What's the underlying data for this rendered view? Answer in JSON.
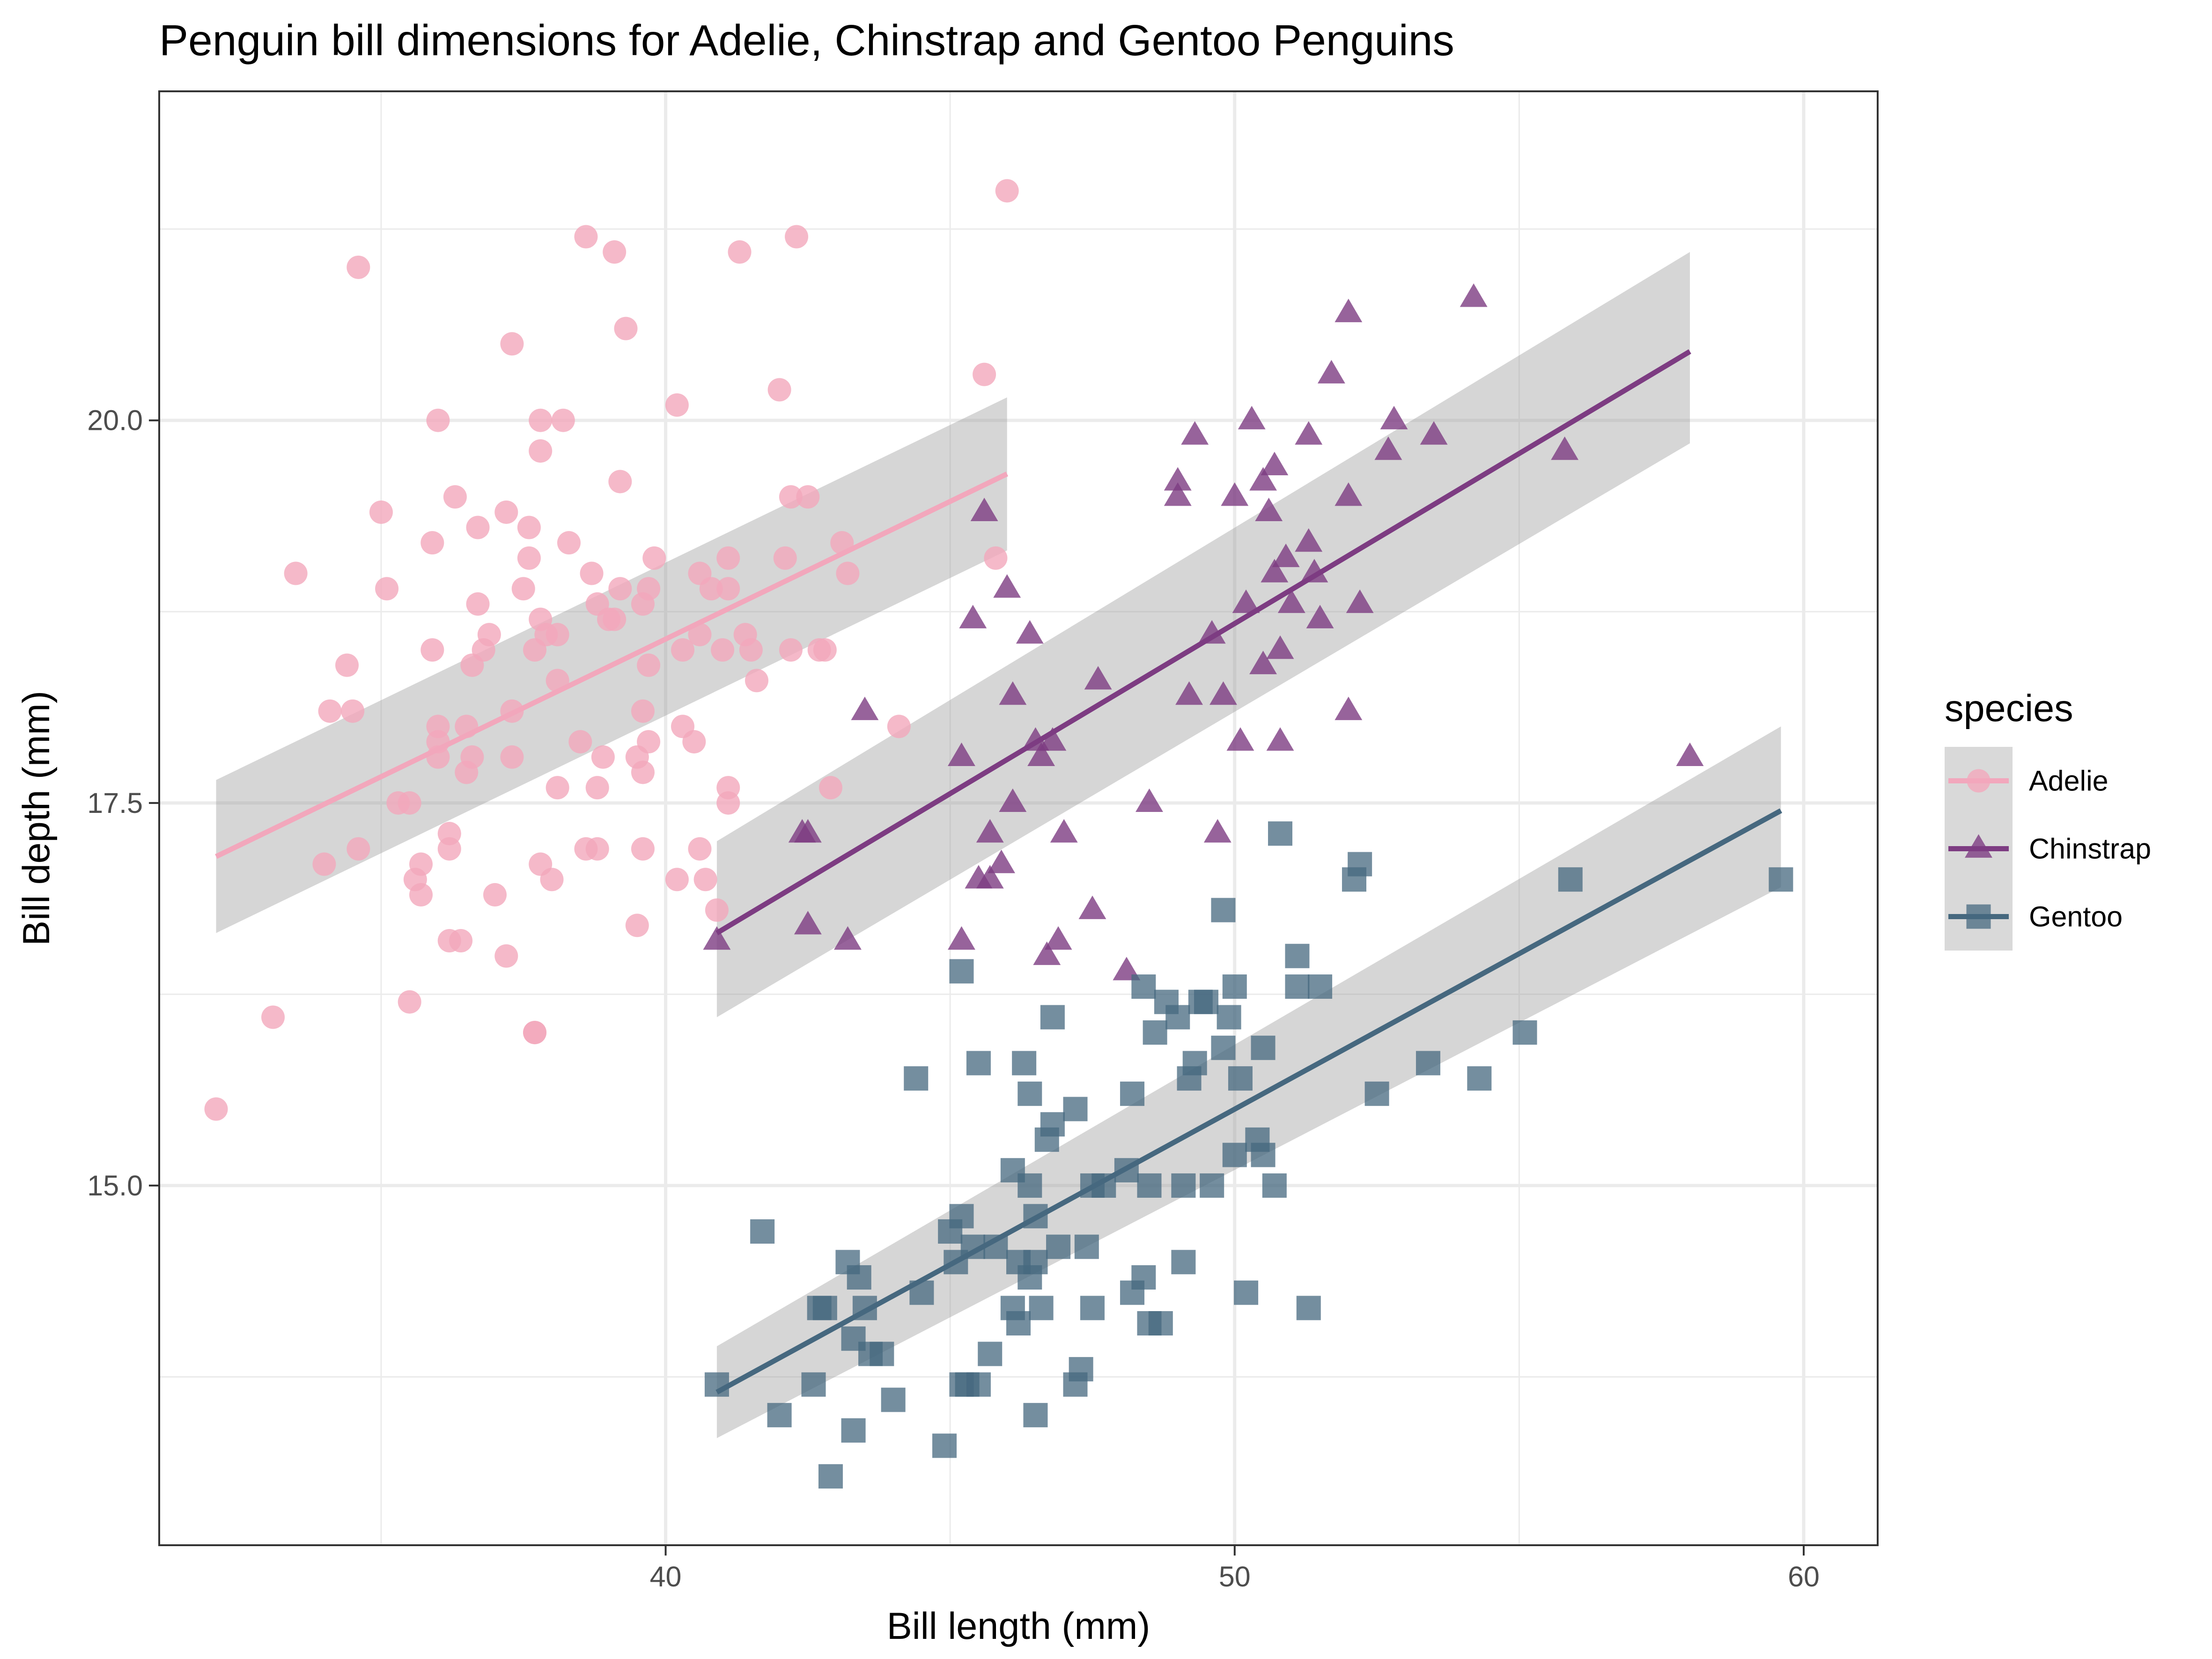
{
  "chart_data": {
    "type": "scatter",
    "title": "Penguin bill dimensions for Adelie, Chinstrap and Gentoo Penguins",
    "xlabel": "Bill length (mm)",
    "ylabel": "Bill depth (mm)",
    "xlim": [
      31.1,
      61.3
    ],
    "ylim": [
      12.65,
      22.15
    ],
    "x_ticks": [
      40,
      50,
      60
    ],
    "x_tick_labels": [
      "40",
      "50",
      "60"
    ],
    "y_ticks": [
      15.0,
      17.5,
      20.0
    ],
    "y_tick_labels": [
      "15.0",
      "17.5",
      "20.0"
    ],
    "grid": true,
    "legend": {
      "title": "species",
      "position": "right"
    },
    "series": [
      {
        "name": "Adelie",
        "shape": "circle",
        "color": "#F2A7BC",
        "line_color": "#F2A7BC",
        "x": [
          32.1,
          33.1,
          33.5,
          34.0,
          34.1,
          34.4,
          34.5,
          34.6,
          34.6,
          35.0,
          35.1,
          35.3,
          35.5,
          35.5,
          35.6,
          35.7,
          35.7,
          35.9,
          35.9,
          36.0,
          36.0,
          36.0,
          36.0,
          36.2,
          36.2,
          36.2,
          36.3,
          36.4,
          36.5,
          36.5,
          36.6,
          36.6,
          36.7,
          36.7,
          36.8,
          36.9,
          37.0,
          37.2,
          37.2,
          37.3,
          37.3,
          37.3,
          37.5,
          37.6,
          37.6,
          37.7,
          37.7,
          37.7,
          37.8,
          37.8,
          37.8,
          37.8,
          37.9,
          38.0,
          38.1,
          38.1,
          38.1,
          38.2,
          38.3,
          38.5,
          38.6,
          38.6,
          38.7,
          38.8,
          38.8,
          38.8,
          38.9,
          39.0,
          39.1,
          39.1,
          39.2,
          39.2,
          39.3,
          39.5,
          39.5,
          39.6,
          39.6,
          39.6,
          39.6,
          39.7,
          39.7,
          39.7,
          39.8,
          40.2,
          40.2,
          40.3,
          40.3,
          40.5,
          40.6,
          40.6,
          40.6,
          40.7,
          40.8,
          40.9,
          41.0,
          41.1,
          41.1,
          41.1,
          41.1,
          41.3,
          41.4,
          41.5,
          41.6,
          42.0,
          42.1,
          42.2,
          42.2,
          42.3,
          42.5,
          42.7,
          42.8,
          42.9,
          43.1,
          43.2,
          44.1,
          45.6,
          45.8,
          46.0
        ],
        "y": [
          15.5,
          16.1,
          19.0,
          17.1,
          18.1,
          18.4,
          18.1,
          21.0,
          17.2,
          19.4,
          18.9,
          17.5,
          16.2,
          17.5,
          17.0,
          16.9,
          17.1,
          19.2,
          18.5,
          17.9,
          18.0,
          17.8,
          20.0,
          17.2,
          17.3,
          16.6,
          19.5,
          16.6,
          17.7,
          18.0,
          17.8,
          18.4,
          18.8,
          19.3,
          18.5,
          18.6,
          16.9,
          16.5,
          19.4,
          17.8,
          20.5,
          18.1,
          18.9,
          19.1,
          19.3,
          18.5,
          16.0,
          16.0,
          18.7,
          17.1,
          20.0,
          19.8,
          18.6,
          17.0,
          17.6,
          18.6,
          18.3,
          20.0,
          19.2,
          17.9,
          17.2,
          21.2,
          19.0,
          17.6,
          17.2,
          18.8,
          17.8,
          18.7,
          21.1,
          18.7,
          19.6,
          18.9,
          20.6,
          17.8,
          16.7,
          18.1,
          17.2,
          18.8,
          17.7,
          18.4,
          18.9,
          17.9,
          19.1,
          17.0,
          20.1,
          18.0,
          18.5,
          17.9,
          18.6,
          19.0,
          17.2,
          17.0,
          18.9,
          16.8,
          18.5,
          17.5,
          17.6,
          18.9,
          19.1,
          21.1,
          18.6,
          18.5,
          18.3,
          20.2,
          19.1,
          18.5,
          19.5,
          21.2,
          19.5,
          18.5,
          18.5,
          17.6,
          19.2,
          19.0,
          18.0,
          20.3,
          19.1,
          21.5
        ]
      },
      {
        "name": "Chinstrap",
        "shape": "triangle",
        "color": "#7D3C82",
        "line_color": "#7D3C82",
        "x": [
          40.9,
          42.4,
          42.5,
          42.5,
          43.2,
          43.5,
          45.2,
          45.2,
          45.4,
          45.5,
          45.6,
          45.7,
          45.7,
          45.9,
          46.0,
          46.1,
          46.1,
          46.4,
          46.5,
          46.6,
          46.7,
          46.8,
          46.9,
          47.0,
          47.5,
          47.6,
          48.1,
          48.5,
          49.0,
          49.0,
          49.2,
          49.3,
          49.6,
          49.7,
          49.8,
          50.0,
          50.1,
          50.2,
          50.3,
          50.5,
          50.5,
          50.6,
          50.7,
          50.7,
          50.8,
          50.8,
          50.9,
          51.0,
          51.3,
          51.3,
          51.4,
          51.5,
          51.7,
          52.0,
          52.0,
          52.0,
          52.2,
          52.7,
          52.8,
          53.5,
          54.2,
          55.8,
          58.0
        ],
        "y": [
          16.6,
          17.3,
          16.7,
          17.3,
          16.6,
          18.1,
          17.8,
          16.6,
          18.7,
          17.0,
          19.4,
          17.0,
          17.3,
          17.1,
          18.9,
          18.2,
          17.5,
          18.6,
          17.9,
          17.8,
          16.5,
          17.9,
          16.6,
          17.3,
          16.8,
          18.3,
          16.4,
          17.5,
          19.5,
          19.6,
          18.2,
          19.9,
          18.6,
          17.3,
          18.2,
          19.5,
          17.9,
          18.8,
          20.0,
          18.4,
          19.6,
          19.4,
          19.7,
          19.0,
          18.5,
          17.9,
          19.1,
          18.8,
          19.9,
          19.2,
          19.0,
          18.7,
          20.3,
          18.1,
          19.5,
          20.7,
          18.8,
          19.8,
          20.0,
          19.9,
          20.8,
          19.8,
          17.8
        ]
      },
      {
        "name": "Gentoo",
        "shape": "square",
        "color": "#46687F",
        "line_color": "#46687F",
        "x": [
          40.9,
          41.7,
          42.0,
          42.6,
          42.7,
          42.8,
          42.9,
          43.2,
          43.3,
          43.3,
          43.4,
          43.5,
          43.6,
          43.8,
          44.0,
          44.4,
          44.5,
          44.9,
          45.0,
          45.1,
          45.2,
          45.2,
          45.2,
          45.3,
          45.4,
          45.5,
          45.5,
          45.7,
          45.8,
          46.1,
          46.1,
          46.2,
          46.2,
          46.3,
          46.4,
          46.4,
          46.4,
          46.5,
          46.5,
          46.5,
          46.6,
          46.7,
          46.8,
          46.8,
          46.9,
          47.2,
          47.2,
          47.3,
          47.4,
          47.5,
          47.5,
          47.7,
          48.1,
          48.2,
          48.2,
          48.4,
          48.4,
          48.5,
          48.5,
          48.6,
          48.7,
          48.8,
          49.0,
          49.1,
          49.1,
          49.2,
          49.3,
          49.4,
          49.5,
          49.6,
          49.8,
          49.8,
          49.9,
          50.0,
          50.0,
          50.1,
          50.2,
          50.4,
          50.5,
          50.5,
          50.7,
          50.8,
          51.1,
          51.1,
          51.3,
          51.5,
          52.1,
          52.2,
          52.5,
          53.4,
          54.3,
          55.1,
          55.9,
          59.6
        ],
        "y": [
          13.7,
          14.7,
          13.5,
          13.7,
          14.2,
          14.2,
          13.1,
          14.5,
          13.4,
          14.0,
          14.4,
          14.2,
          13.9,
          13.9,
          13.6,
          15.7,
          14.3,
          13.3,
          14.7,
          14.5,
          14.8,
          13.7,
          16.4,
          13.7,
          14.6,
          15.8,
          13.7,
          13.9,
          14.6,
          15.1,
          14.2,
          14.1,
          14.5,
          15.8,
          14.4,
          15.6,
          15.0,
          14.8,
          13.5,
          14.5,
          14.2,
          15.3,
          16.1,
          15.4,
          14.6,
          15.5,
          13.7,
          13.8,
          14.6,
          14.2,
          15.0,
          15.0,
          15.1,
          14.3,
          15.6,
          14.4,
          16.3,
          14.1,
          15.0,
          16.0,
          14.1,
          16.2,
          16.1,
          15.0,
          14.5,
          15.7,
          15.8,
          16.2,
          16.2,
          15.0,
          15.9,
          16.8,
          16.1,
          15.2,
          16.3,
          15.7,
          14.3,
          15.3,
          15.2,
          15.9,
          15.0,
          17.3,
          16.3,
          16.5,
          14.2,
          16.3,
          17.0,
          17.1,
          15.6,
          15.8,
          15.7,
          16.0,
          17.0,
          17.0
        ]
      }
    ],
    "trend_lines": [
      {
        "name": "Adelie",
        "x": [
          32.1,
          46.0
        ],
        "y": [
          17.15,
          19.65
        ],
        "ci_low": [
          16.65,
          19.15
        ],
        "ci_high": [
          17.65,
          20.15
        ]
      },
      {
        "name": "Chinstrap",
        "x": [
          40.9,
          58.0
        ],
        "y": [
          16.65,
          20.45
        ],
        "ci_low": [
          16.1,
          19.85
        ],
        "ci_high": [
          17.25,
          21.1
        ]
      },
      {
        "name": "Gentoo",
        "x": [
          40.9,
          59.6
        ],
        "y": [
          13.65,
          17.45
        ],
        "ci_low": [
          13.35,
          16.95
        ],
        "ci_high": [
          13.95,
          18.0
        ]
      }
    ]
  }
}
